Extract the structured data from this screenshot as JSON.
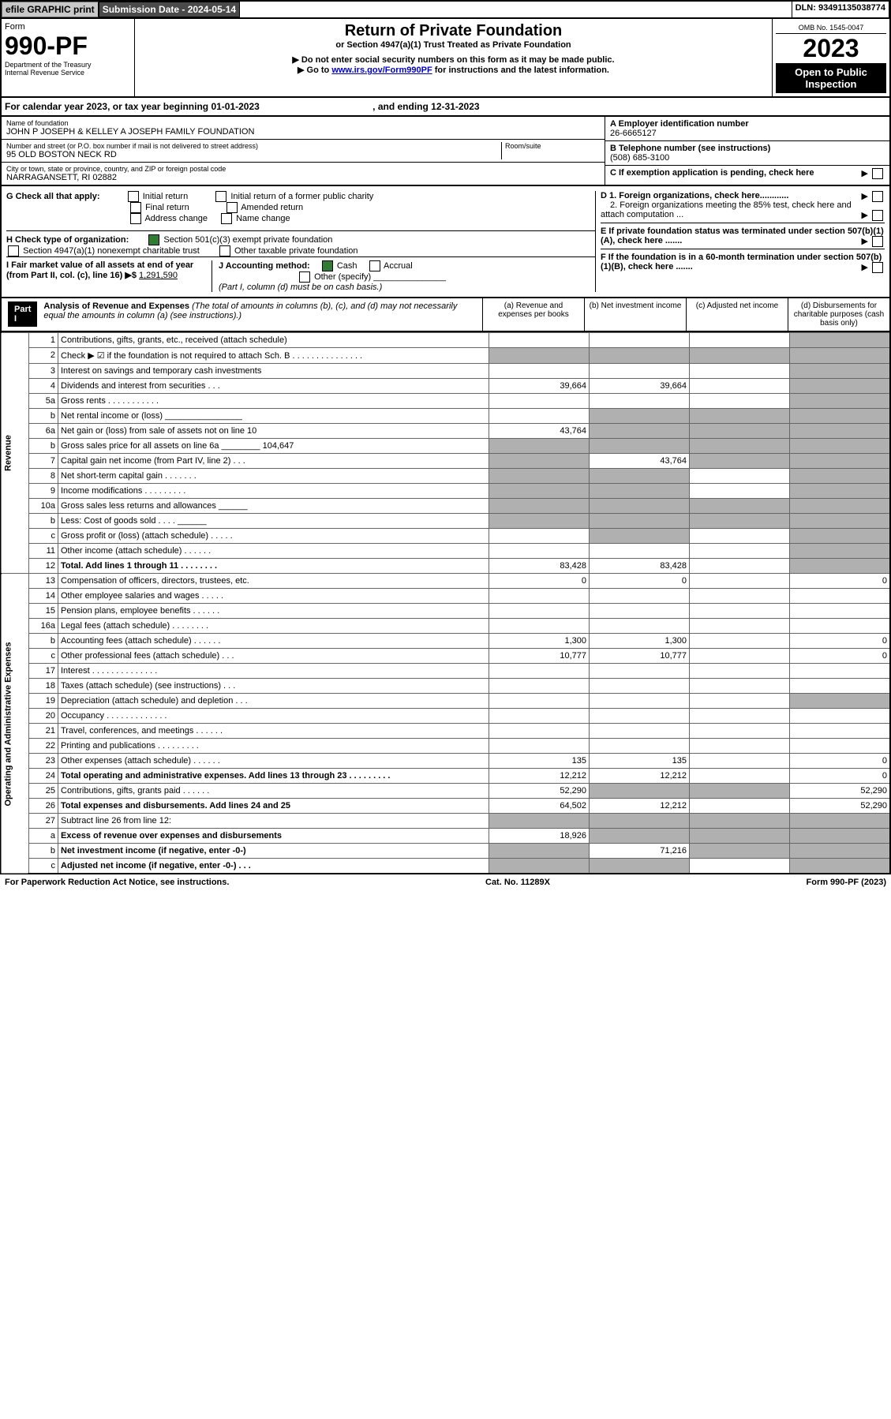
{
  "header": {
    "efile": "efile GRAPHIC print",
    "sub_label": "Submission Date - 2024-05-14",
    "dln": "DLN: 93491135038774",
    "omb": "OMB No. 1545-0047",
    "form": "Form",
    "form_num": "990-PF",
    "dept": "Department of the Treasury",
    "irs": "Internal Revenue Service",
    "title": "Return of Private Foundation",
    "subtitle": "or Section 4947(a)(1) Trust Treated as Private Foundation",
    "note1": "▶ Do not enter social security numbers on this form as it may be made public.",
    "note2": "▶ Go to ",
    "note2_link": "www.irs.gov/Form990PF",
    "note2_end": " for instructions and the latest information.",
    "year": "2023",
    "open": "Open to Public Inspection"
  },
  "cal": "For calendar year 2023, or tax year beginning 01-01-2023",
  "cal_end": ", and ending 12-31-2023",
  "name_lbl": "Name of foundation",
  "name": "JOHN P JOSEPH & KELLEY A JOSEPH FAMILY FOUNDATION",
  "addr_lbl": "Number and street (or P.O. box number if mail is not delivered to street address)",
  "addr": "95 OLD BOSTON NECK RD",
  "room": "Room/suite",
  "city_lbl": "City or town, state or province, country, and ZIP or foreign postal code",
  "city": "NARRAGANSETT, RI  02882",
  "ein_lbl": "A Employer identification number",
  "ein": "26-6665127",
  "tel_lbl": "B Telephone number (see instructions)",
  "tel": "(508) 685-3100",
  "c_lbl": "C If exemption application is pending, check here",
  "g_lbl": "G Check all that apply:",
  "g_opts": [
    "Initial return",
    "Final return",
    "Address change",
    "Initial return of a former public charity",
    "Amended return",
    "Name change"
  ],
  "d1": "D 1. Foreign organizations, check here............",
  "d2": "2. Foreign organizations meeting the 85% test, check here and attach computation ...",
  "h_lbl": "H Check type of organization:",
  "h1": "Section 501(c)(3) exempt private foundation",
  "h2": "Section 4947(a)(1) nonexempt charitable trust",
  "h3": "Other taxable private foundation",
  "e_lbl": "E  If private foundation status was terminated under section 507(b)(1)(A), check here .......",
  "i_lbl": "I Fair market value of all assets at end of year (from Part II, col. (c), line 16) ▶$ ",
  "i_val": "1,291,590",
  "j_lbl": "J Accounting method:",
  "j_cash": "Cash",
  "j_accrual": "Accrual",
  "j_other": "Other (specify)",
  "j_note": "(Part I, column (d) must be on cash basis.)",
  "f_lbl": "F  If the foundation is in a 60-month termination under section 507(b)(1)(B), check here .......",
  "part1": "Part I",
  "part1_title": "Analysis of Revenue and Expenses",
  "part1_note": " (The total of amounts in columns (b), (c), and (d) may not necessarily equal the amounts in column (a) (see instructions).)",
  "cols": {
    "a": "(a)  Revenue and expenses per books",
    "b": "(b)  Net investment income",
    "c": "(c)  Adjusted net income",
    "d": "(d)  Disbursements for charitable purposes (cash basis only)"
  },
  "sections": {
    "rev": "Revenue",
    "exp": "Operating and Administrative Expenses"
  },
  "rows": [
    {
      "n": "1",
      "d": "Contributions, gifts, grants, etc., received (attach schedule)",
      "a": "",
      "b": "",
      "c": ""
    },
    {
      "n": "2",
      "d": "Check ▶ ☑ if the foundation is not required to attach Sch. B     .  .  .  .  .  .  .  .  .  .  .  .  .  .  .",
      "grey_all": true
    },
    {
      "n": "3",
      "d": "Interest on savings and temporary cash investments"
    },
    {
      "n": "4",
      "d": "Dividends and interest from securities   .   .   .",
      "a": "39,664",
      "b": "39,664"
    },
    {
      "n": "5a",
      "d": "Gross rents   .   .   .   .   .   .   .   .   .   .   ."
    },
    {
      "n": "b",
      "d": "Net rental income or (loss)   ________________",
      "grey_bcd": true
    },
    {
      "n": "6a",
      "d": "Net gain or (loss) from sale of assets not on line 10",
      "a": "43,764",
      "grey_bcd": true
    },
    {
      "n": "b",
      "d": "Gross sales price for all assets on line 6a ________  104,647",
      "grey_all": true
    },
    {
      "n": "7",
      "d": "Capital gain net income (from Part IV, line 2)   .   .   .",
      "b": "43,764",
      "grey_a": true,
      "grey_cd": true
    },
    {
      "n": "8",
      "d": "Net short-term capital gain   .   .   .   .   .   .   .",
      "grey_ab": true,
      "grey_d": true
    },
    {
      "n": "9",
      "d": "Income modifications .   .   .   .   .   .   .   .   .",
      "grey_ab": true,
      "grey_d": true
    },
    {
      "n": "10a",
      "d": "Gross sales less returns and allowances   ______",
      "grey_all": true
    },
    {
      "n": "b",
      "d": "Less: Cost of goods sold   .   .   .   .   ______",
      "grey_all": true
    },
    {
      "n": "c",
      "d": "Gross profit or (loss) (attach schedule)   .   .   .   .   .",
      "grey_b": true,
      "grey_d": true
    },
    {
      "n": "11",
      "d": "Other income (attach schedule)   .   .   .   .   .   ."
    },
    {
      "n": "12",
      "d": "Total. Add lines 1 through 11   .   .   .   .   .   .   .   .",
      "bold": true,
      "a": "83,428",
      "b": "83,428",
      "grey_d": true
    },
    {
      "n": "13",
      "d": "Compensation of officers, directors, trustees, etc.",
      "a": "0",
      "b": "0",
      "dd": "0",
      "sec": "exp"
    },
    {
      "n": "14",
      "d": "Other employee salaries and wages   .   .   .   .   ."
    },
    {
      "n": "15",
      "d": "Pension plans, employee benefits .   .   .   .   .   ."
    },
    {
      "n": "16a",
      "d": "Legal fees (attach schedule) .   .   .   .   .   .   .   ."
    },
    {
      "n": "b",
      "d": "Accounting fees (attach schedule) .   .   .   .   .   .",
      "a": "1,300",
      "b": "1,300",
      "dd": "0"
    },
    {
      "n": "c",
      "d": "Other professional fees (attach schedule)   .   .   .",
      "a": "10,777",
      "b": "10,777",
      "dd": "0"
    },
    {
      "n": "17",
      "d": "Interest .   .   .   .   .   .   .   .   .   .   .   .   .   ."
    },
    {
      "n": "18",
      "d": "Taxes (attach schedule) (see instructions)   .   .   ."
    },
    {
      "n": "19",
      "d": "Depreciation (attach schedule) and depletion   .   .   .",
      "grey_d": true
    },
    {
      "n": "20",
      "d": "Occupancy .   .   .   .   .   .   .   .   .   .   .   .   ."
    },
    {
      "n": "21",
      "d": "Travel, conferences, and meetings .   .   .   .   .   ."
    },
    {
      "n": "22",
      "d": "Printing and publications .   .   .   .   .   .   .   .   ."
    },
    {
      "n": "23",
      "d": "Other expenses (attach schedule) .   .   .   .   .   .",
      "a": "135",
      "b": "135",
      "dd": "0"
    },
    {
      "n": "24",
      "d": "Total operating and administrative expenses. Add lines 13 through 23   .   .   .   .   .   .   .   .   .",
      "bold": true,
      "a": "12,212",
      "b": "12,212",
      "dd": "0"
    },
    {
      "n": "25",
      "d": "Contributions, gifts, grants paid   .   .   .   .   .   .",
      "a": "52,290",
      "grey_bc": true,
      "dd": "52,290"
    },
    {
      "n": "26",
      "d": "Total expenses and disbursements. Add lines 24 and 25",
      "bold": true,
      "a": "64,502",
      "b": "12,212",
      "dd": "52,290"
    },
    {
      "n": "27",
      "d": "Subtract line 26 from line 12:",
      "grey_all": true
    },
    {
      "n": "a",
      "d": "Excess of revenue over expenses and disbursements",
      "bold": true,
      "a": "18,926",
      "grey_bcd": true
    },
    {
      "n": "b",
      "d": "Net investment income (if negative, enter -0-)",
      "bold": true,
      "b": "71,216",
      "grey_a": true,
      "grey_cd": true
    },
    {
      "n": "c",
      "d": "Adjusted net income (if negative, enter -0-)   .   .   .",
      "bold": true,
      "grey_ab": true,
      "grey_d": true
    }
  ],
  "footer": {
    "left": "For Paperwork Reduction Act Notice, see instructions.",
    "mid": "Cat. No. 11289X",
    "right": "Form 990-PF (2023)"
  }
}
